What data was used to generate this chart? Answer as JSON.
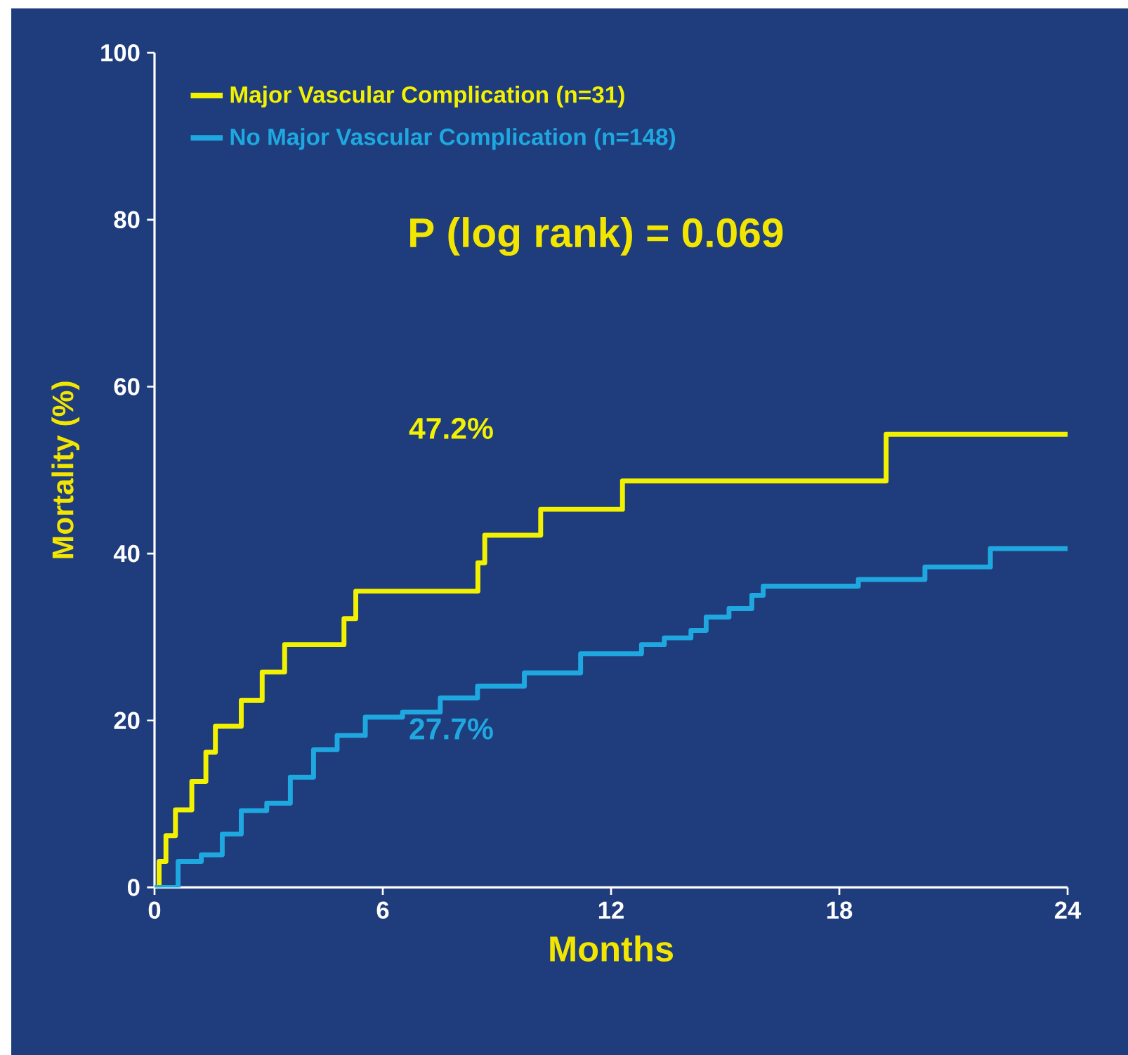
{
  "chart_data": {
    "type": "step",
    "xlabel": "Months",
    "ylabel": "Mortality (%)",
    "annotations": [
      "P (log rank) = 0.069",
      "47.2%",
      "27.7%"
    ],
    "series": [
      {
        "name": "Major Vascular Complication (n=31)",
        "color": "#f2f200",
        "x": [
          0,
          0.12,
          0.3,
          0.55,
          0.98,
          1.35,
          1.6,
          2.28,
          2.83,
          3.42,
          4.98,
          5.29,
          8.5,
          8.68,
          10.15,
          12.3,
          19.23,
          24
        ],
        "values": [
          0,
          3.1,
          6.2,
          9.3,
          12.7,
          16.2,
          19.3,
          22.4,
          25.8,
          29.1,
          32.2,
          35.5,
          38.9,
          42.2,
          45.3,
          48.7,
          54.3,
          54.3
        ]
      },
      {
        "name": "No Major Vascular Complication (n=148)",
        "color": "#1fa8e0",
        "x": [
          0,
          0.1,
          0.62,
          1.23,
          1.78,
          2.28,
          2.95,
          3.57,
          4.18,
          4.8,
          5.54,
          6.52,
          7.51,
          8.49,
          9.72,
          11.2,
          12.8,
          13.4,
          14.1,
          14.5,
          15.1,
          15.7,
          16.0,
          18.5,
          20.25,
          21.97,
          24
        ],
        "values": [
          0,
          0,
          3.1,
          3.9,
          6.4,
          9.2,
          10.1,
          13.2,
          16.5,
          18.2,
          20.4,
          21.0,
          22.7,
          24.1,
          25.7,
          28.0,
          29.1,
          29.9,
          30.8,
          32.4,
          33.4,
          35.0,
          36.1,
          36.9,
          38.4,
          40.6,
          40.6
        ]
      }
    ],
    "xlim": [
      0,
      24
    ],
    "xticks": [
      0,
      6,
      12,
      18,
      24
    ],
    "ylim": [
      0,
      100
    ],
    "yticks": [
      0,
      20,
      40,
      60,
      80,
      100
    ],
    "grid": false,
    "legend": "top left"
  }
}
